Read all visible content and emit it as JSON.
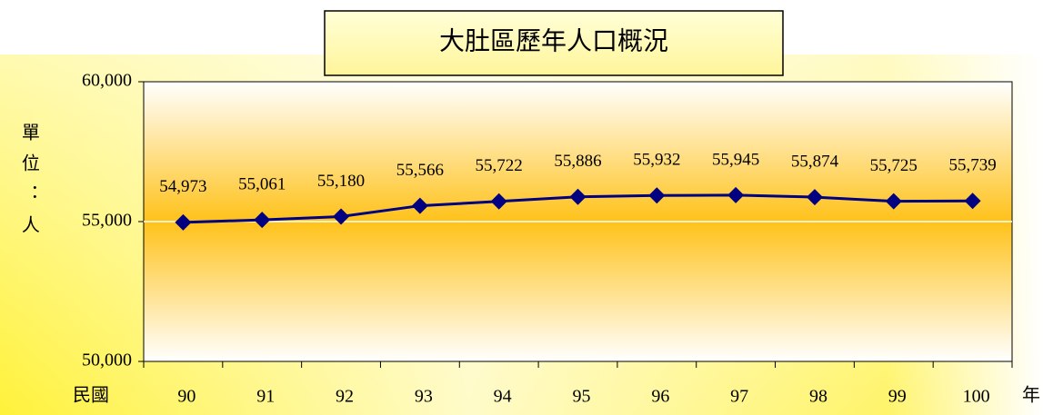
{
  "chart_data": {
    "type": "line",
    "title": "大肚區歷年人口概況",
    "y_axis_label": "單位：人",
    "x_axis_label_left": "民國",
    "x_axis_label_right": "年",
    "categories": [
      "90",
      "91",
      "92",
      "93",
      "94",
      "95",
      "96",
      "97",
      "98",
      "99",
      "100"
    ],
    "series": [
      {
        "name": "人口",
        "color": "#000080",
        "values": [
          54973,
          55061,
          55180,
          55566,
          55722,
          55886,
          55932,
          55945,
          55874,
          55725,
          55739
        ],
        "value_labels": [
          "54,973",
          "55,061",
          "55,180",
          "55,566",
          "55,722",
          "55,886",
          "55,932",
          "55,945",
          "55,874",
          "55,725",
          "55,739"
        ]
      }
    ],
    "ylim": [
      50000,
      60000
    ],
    "yticks": [
      {
        "value": 50000,
        "label": "50,000"
      },
      {
        "value": 55000,
        "label": "55,000"
      },
      {
        "value": 60000,
        "label": "60,000"
      }
    ],
    "grid": true
  }
}
